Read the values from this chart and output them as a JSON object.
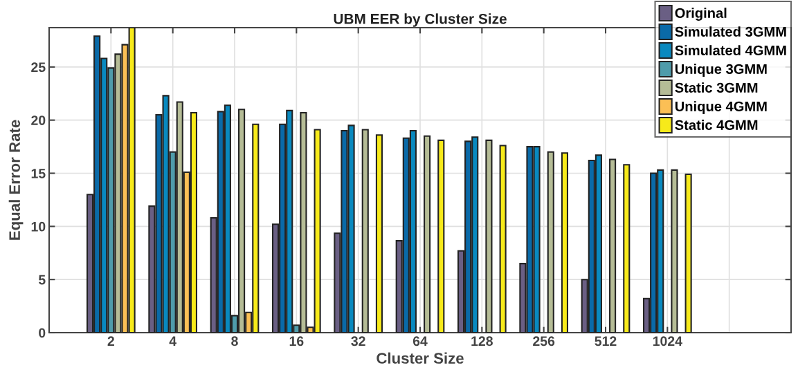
{
  "chart_data": {
    "type": "bar",
    "title": "UBM EER by Cluster Size",
    "xlabel": "Cluster Size",
    "ylabel": "Equal Error Rate",
    "categories": [
      "2",
      "4",
      "8",
      "16",
      "32",
      "64",
      "128",
      "256",
      "512",
      "1024",
      null,
      null
    ],
    "series": [
      {
        "name": "Original",
        "color": "#6a5f84",
        "values": [
          13.0,
          11.9,
          10.8,
          10.2,
          9.35,
          8.65,
          7.7,
          6.5,
          5.0,
          3.2,
          null,
          null
        ]
      },
      {
        "name": "Simulated 3GMM",
        "color": "#0a6aa8",
        "values": [
          27.9,
          20.5,
          20.8,
          19.6,
          19.0,
          18.3,
          18.0,
          17.5,
          16.2,
          15.0,
          null,
          null
        ]
      },
      {
        "name": "Simulated 4GMM",
        "color": "#0989bf",
        "values": [
          25.8,
          22.3,
          21.4,
          20.9,
          19.5,
          19.0,
          18.4,
          17.5,
          16.7,
          15.3,
          null,
          null
        ]
      },
      {
        "name": "Unique 3GMM",
        "color": "#4f9cab",
        "values": [
          24.9,
          17.0,
          1.6,
          0.7,
          null,
          null,
          null,
          null,
          null,
          null,
          null,
          null
        ]
      },
      {
        "name": "Static 3GMM",
        "color": "#b5bc96",
        "values": [
          26.2,
          21.7,
          21.0,
          20.7,
          19.1,
          18.5,
          18.1,
          17.0,
          16.3,
          15.3,
          null,
          null
        ]
      },
      {
        "name": "Unique 4GMM",
        "color": "#fbbf55",
        "values": [
          27.1,
          15.1,
          1.9,
          0.5,
          null,
          null,
          null,
          null,
          null,
          null,
          null,
          null
        ]
      },
      {
        "name": "Static 4GMM",
        "color": "#f7ea1a",
        "values": [
          28.7,
          20.7,
          19.6,
          19.1,
          18.6,
          18.1,
          17.6,
          16.9,
          15.8,
          14.9,
          null,
          null
        ]
      }
    ],
    "ylim": [
      0,
      28.7
    ],
    "yticks": [
      0,
      5,
      10,
      15,
      20,
      25
    ],
    "grid": true,
    "legend": "top right"
  }
}
